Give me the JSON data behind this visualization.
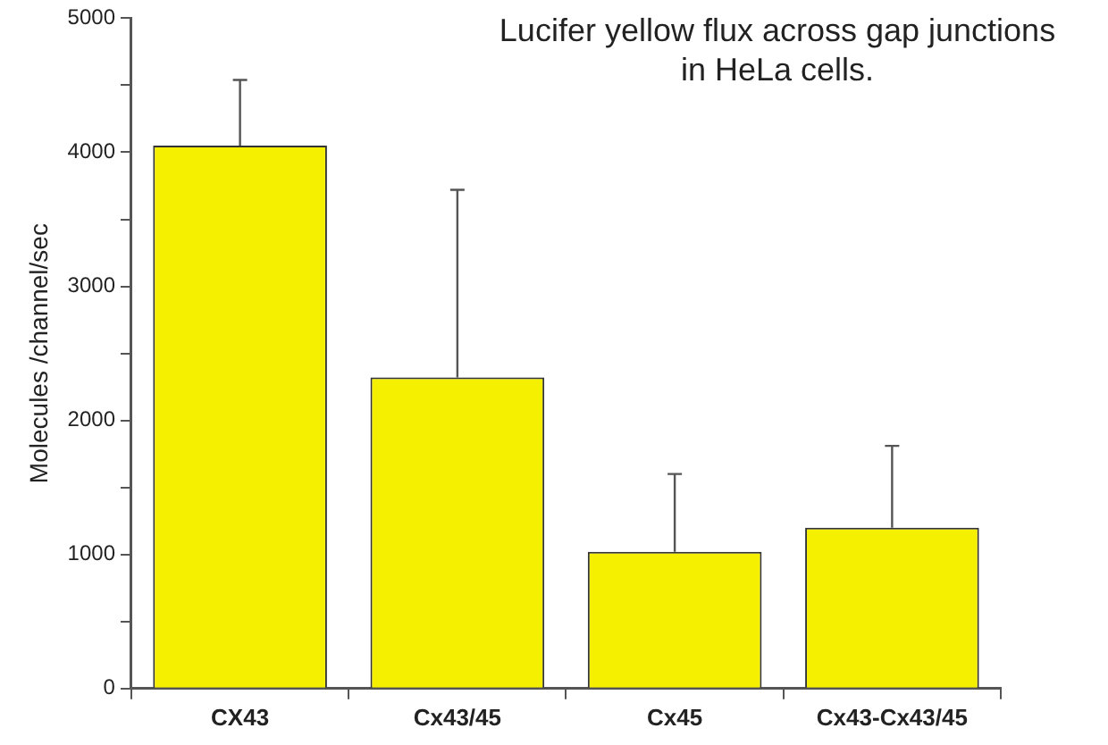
{
  "chart_data": {
    "type": "bar",
    "title": "Lucifer yellow flux across gap junctions in HeLa cells.",
    "ylabel": "Molecules /channel/sec",
    "categories": [
      "CX43",
      "Cx43/45",
      "Cx45",
      "Cx43-Cx43/45"
    ],
    "values": [
      4050,
      2320,
      1020,
      1200
    ],
    "errors": [
      [
        4050,
        4540
      ],
      [
        2320,
        3720
      ],
      [
        1020,
        1600
      ],
      [
        1200,
        1810
      ]
    ],
    "color": "#f5f000",
    "ylim": [
      0,
      5000
    ],
    "yticks": [
      0,
      {
        "value": 500,
        "label": null
      },
      1000,
      {
        "value": 1500,
        "label": null
      },
      2000,
      {
        "value": 2500,
        "label": null
      },
      3000,
      {
        "value": 3500,
        "label": null
      },
      4000,
      {
        "value": 4500,
        "label": null
      },
      5000
    ],
    "grid": false,
    "legend": false
  }
}
